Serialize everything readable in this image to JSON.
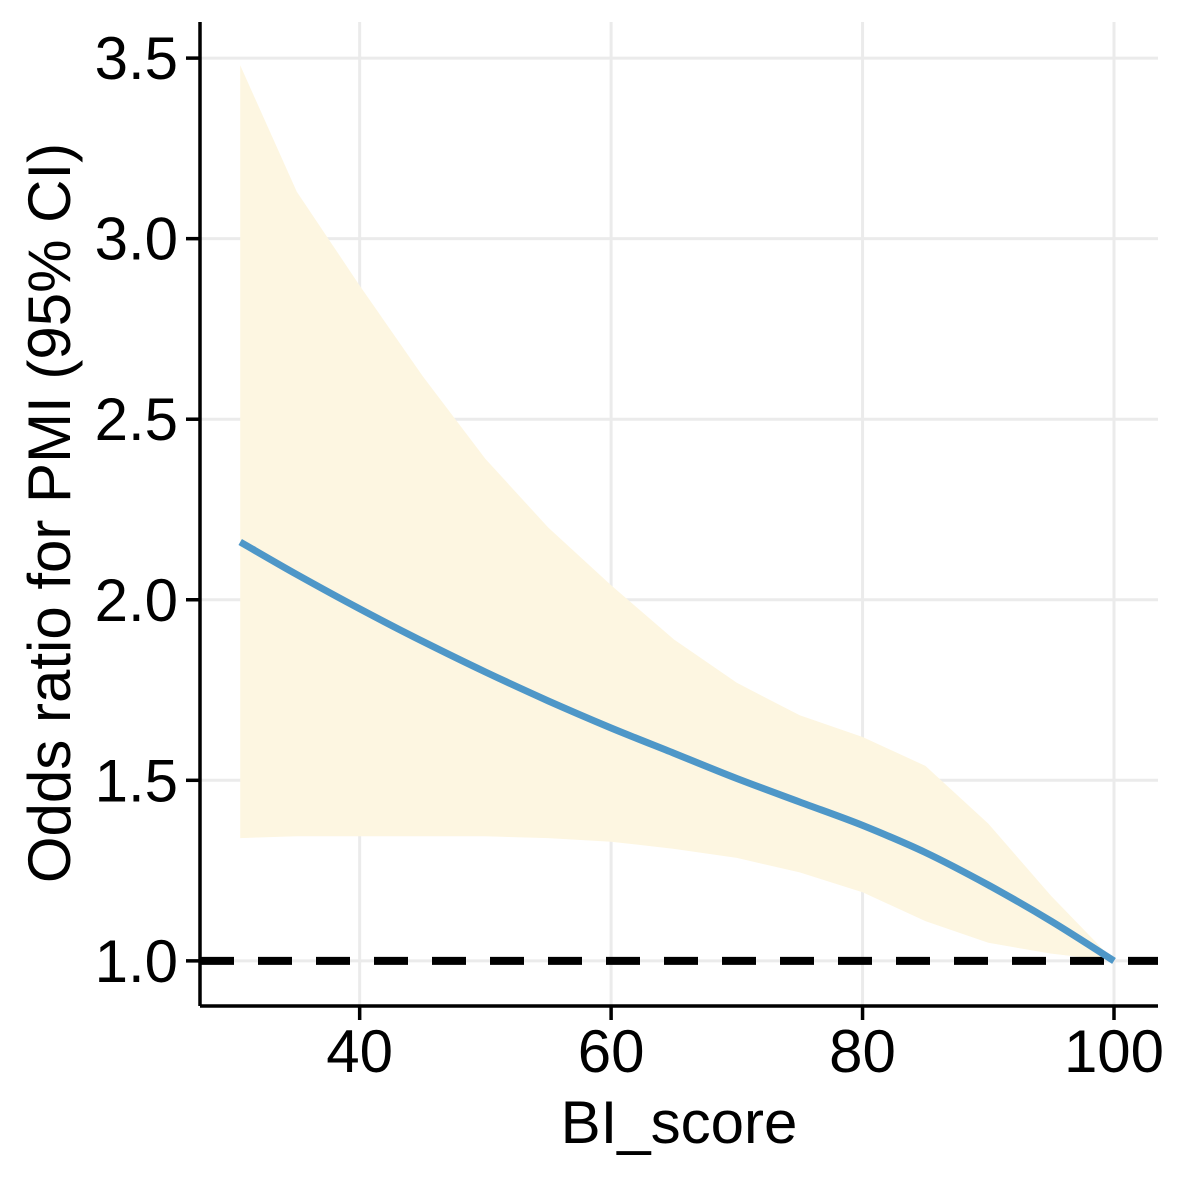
{
  "chart_data": {
    "type": "line",
    "title": "",
    "xlabel": "BI_score",
    "ylabel": "Odds ratio for PMI (95% CI)",
    "xlim": [
      27.3,
      103.5
    ],
    "ylim": [
      0.875,
      3.6
    ],
    "x_ticks": [
      40,
      60,
      80,
      100
    ],
    "y_ticks": [
      1.0,
      1.5,
      2.0,
      2.5,
      3.0,
      3.5
    ],
    "x_tick_labels": [
      "40",
      "60",
      "80",
      "100"
    ],
    "y_tick_labels": [
      "1.0",
      "1.5",
      "2.0",
      "2.5",
      "3.0",
      "3.5"
    ],
    "grid": true,
    "reference_line": {
      "y": 1.0,
      "style": "dashed",
      "color": "#000000"
    },
    "series": [
      {
        "name": "Odds ratio",
        "color": "#4e97c8",
        "x": [
          30.5,
          35,
          40,
          45,
          50,
          55,
          60,
          65,
          70,
          75,
          80,
          85,
          90,
          95,
          100
        ],
        "y": [
          2.16,
          2.07,
          1.975,
          1.885,
          1.8,
          1.72,
          1.645,
          1.575,
          1.505,
          1.44,
          1.375,
          1.3,
          1.21,
          1.11,
          1.0
        ]
      }
    ],
    "confidence_band": {
      "name": "95% CI",
      "color": "#fdf6e1",
      "x": [
        30.5,
        35,
        40,
        45,
        50,
        55,
        60,
        65,
        70,
        75,
        80,
        85,
        90,
        95,
        100
      ],
      "lower": [
        1.34,
        1.345,
        1.345,
        1.345,
        1.345,
        1.34,
        1.33,
        1.31,
        1.285,
        1.245,
        1.19,
        1.11,
        1.05,
        1.02,
        1.0
      ],
      "upper": [
        3.48,
        3.13,
        2.87,
        2.62,
        2.39,
        2.2,
        2.04,
        1.89,
        1.77,
        1.68,
        1.62,
        1.54,
        1.38,
        1.18,
        1.0
      ]
    }
  }
}
